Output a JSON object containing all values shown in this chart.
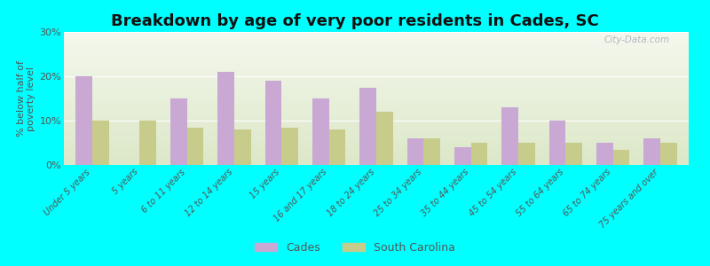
{
  "title": "Breakdown by age of very poor residents in Cades, SC",
  "ylabel": "% below half of\npoverty level",
  "categories": [
    "Under 5 years",
    "5 years",
    "6 to 11 years",
    "12 to 14 years",
    "15 years",
    "16 and 17 years",
    "18 to 24 years",
    "25 to 34 years",
    "35 to 44 years",
    "45 to 54 years",
    "55 to 64 years",
    "65 to 74 years",
    "75 years and over"
  ],
  "cades_values": [
    20,
    0,
    15,
    21,
    19,
    15,
    17.5,
    6,
    4,
    13,
    10,
    5,
    6
  ],
  "sc_values": [
    10,
    10,
    8.5,
    8,
    8.5,
    8,
    12,
    6,
    5,
    5,
    5,
    3.5,
    5
  ],
  "cades_color": "#c9a8d4",
  "sc_color": "#c8cc8a",
  "figure_bg_color": "#00ffff",
  "plot_area_color_top": "#f5f8ee",
  "plot_area_color_bottom": "#dce8c8",
  "ylim": [
    0,
    30
  ],
  "yticks": [
    0,
    10,
    20,
    30
  ],
  "ytick_labels": [
    "0%",
    "10%",
    "20%",
    "30%"
  ],
  "legend_cades": "Cades",
  "legend_sc": "South Carolina",
  "title_fontsize": 13,
  "label_fontsize": 7,
  "bar_width": 0.35
}
